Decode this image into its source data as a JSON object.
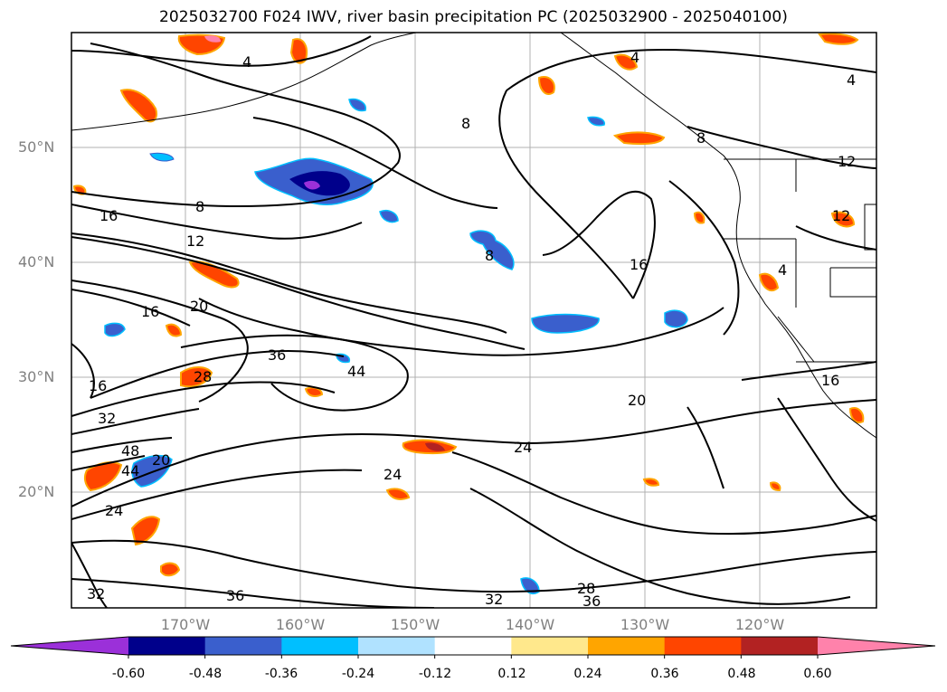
{
  "title": "2025032700 F024 IWV, river basin precipitation PC (2025032900 - 2025040100)",
  "map": {
    "lat_labels": [
      "50°N",
      "40°N",
      "30°N",
      "20°N"
    ],
    "lon_labels": [
      "170°W",
      "160°W",
      "150°W",
      "140°W",
      "130°W",
      "120°W"
    ],
    "contour_labels": [
      "4",
      "4",
      "4",
      "8",
      "8",
      "8",
      "12",
      "12",
      "16",
      "16",
      "16",
      "16",
      "16",
      "20",
      "20",
      "20",
      "24",
      "24",
      "24",
      "28",
      "28",
      "32",
      "32",
      "32",
      "36",
      "36",
      "36",
      "44",
      "44",
      "48",
      "4",
      "8",
      "12"
    ]
  },
  "colorbar": {
    "tick_labels": [
      "-0.60",
      "-0.48",
      "-0.36",
      "-0.24",
      "-0.12",
      "0.12",
      "0.24",
      "0.36",
      "0.48",
      "0.60"
    ],
    "colors": [
      "#9b30d9",
      "#00008b",
      "#3a5fcd",
      "#00bfff",
      "#b0e2ff",
      "#ffffff",
      "#ffe88c",
      "#ffa500",
      "#ff4500",
      "#b22222",
      "#ff82ab"
    ]
  }
}
